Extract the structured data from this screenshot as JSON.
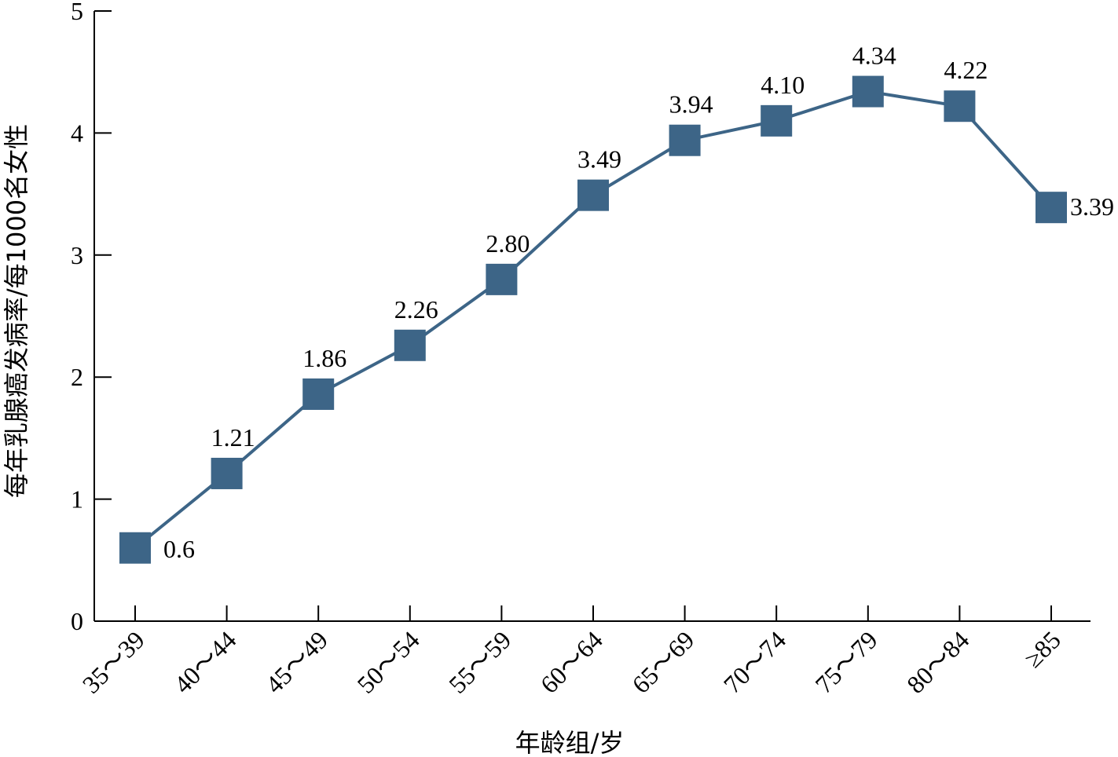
{
  "chart_data": {
    "type": "line",
    "title": "",
    "xlabel": "年龄组/岁",
    "ylabel": "每年乳腺癌发病率/每1000名女性",
    "categories": [
      "35～39",
      "40～44",
      "45～49",
      "50～54",
      "55～59",
      "60～64",
      "65～69",
      "70～74",
      "75～79",
      "80～84",
      "≥85"
    ],
    "series": [
      {
        "values": [
          0.6,
          1.21,
          1.86,
          2.26,
          2.8,
          3.49,
          3.94,
          4.1,
          4.34,
          4.22,
          3.39
        ],
        "data_labels": [
          "0.6",
          "1.21",
          "1.86",
          "2.26",
          "2.80",
          "3.49",
          "3.94",
          "4.10",
          "4.34",
          "4.22",
          "3.39"
        ],
        "color": "#3d6587",
        "marker": "square"
      }
    ],
    "yticks": [
      "0",
      "1",
      "2",
      "3",
      "4",
      "5"
    ],
    "ylim": [
      0,
      5
    ],
    "grid": false,
    "legend": "none"
  }
}
